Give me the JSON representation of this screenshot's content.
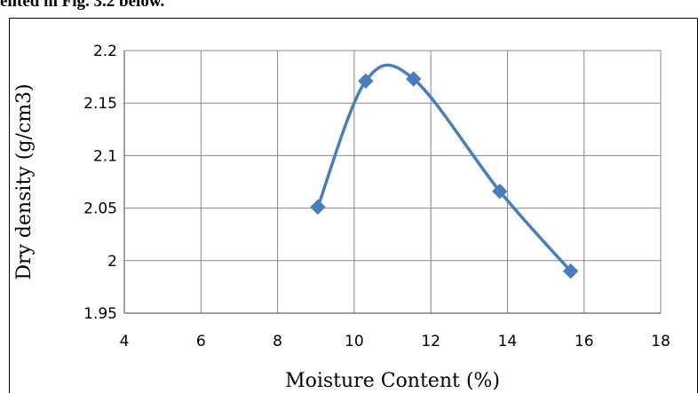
{
  "caption": "ented in Fig. 3.2 below.",
  "chart_data": {
    "type": "line",
    "title": "",
    "xlabel": "Moisture  Content (%)",
    "ylabel": "Dry density (g/cm3)",
    "xlim": [
      4,
      18
    ],
    "ylim": [
      1.95,
      2.2
    ],
    "xticks": [
      4,
      6,
      8,
      10,
      12,
      14,
      16,
      18
    ],
    "yticks": [
      1.95,
      2,
      2.05,
      2.1,
      2.15,
      2.2
    ],
    "xtick_labels": [
      "4",
      "6",
      "8",
      "10",
      "12",
      "14",
      "16",
      "18"
    ],
    "ytick_labels": [
      "1.95",
      "2",
      "2.05",
      "2.1",
      "2.15",
      "2.2"
    ],
    "grid": true,
    "smooth": true,
    "marker": "diamond",
    "color": "#4a7ebb",
    "series": [
      {
        "x": [
          9.05,
          10.3,
          11.55,
          13.8,
          15.65
        ],
        "y": [
          2.051,
          2.171,
          2.173,
          2.066,
          1.99
        ]
      }
    ]
  }
}
